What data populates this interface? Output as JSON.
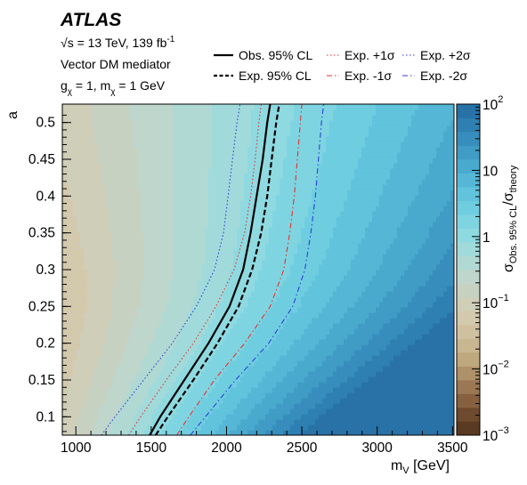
{
  "chart_data": {
    "type": "heatmap",
    "experiment": "ATLAS",
    "info_lines": [
      "13 TeV, 139 fb",
      "Vector DM mediator",
      "g",
      "= 1, m",
      "= 1 GeV"
    ],
    "energy_text": "s = 13 TeV, 139 fb",
    "lumi_sup": "-1",
    "model_text": "Vector DM mediator",
    "coupling": {
      "g": "g",
      "g_sub": "χ",
      "eq1": " = 1, m",
      "m_sub": "χ",
      "eq2": " = 1 GeV"
    },
    "xlabel": "m",
    "xlabel_sub": "V",
    "xlabel_unit": " [GeV]",
    "ylabel": "a",
    "zlabel": "σ",
    "zlabel_sub1": "Obs. 95% CL",
    "zlabel_mid": "/σ",
    "zlabel_sub2": "theory",
    "xlim": [
      910,
      3510
    ],
    "ylim": [
      0.075,
      0.525
    ],
    "zlim_log10": [
      -3,
      2
    ],
    "x_ticks": [
      "1000",
      "1500",
      "2000",
      "2500",
      "3000",
      "3500"
    ],
    "x_tick_values": [
      1000,
      1500,
      2000,
      2500,
      3000,
      3500
    ],
    "y_ticks": [
      "0.1",
      "0.15",
      "0.2",
      "0.25",
      "0.3",
      "0.35",
      "0.4",
      "0.45",
      "0.5"
    ],
    "y_tick_values": [
      0.1,
      0.15,
      0.2,
      0.25,
      0.3,
      0.35,
      0.4,
      0.45,
      0.5
    ],
    "z_ticks": [
      {
        "base": "10",
        "exp": "2",
        "log": 2
      },
      {
        "base": "10",
        "exp": "",
        "log": 1
      },
      {
        "base": "1",
        "exp": "",
        "log": 0
      },
      {
        "base": "10",
        "exp": "−1",
        "log": -1
      },
      {
        "base": "10",
        "exp": "−2",
        "log": -2
      },
      {
        "base": "10",
        "exp": "−3",
        "log": -3
      }
    ],
    "palette": [
      "#5a3a22",
      "#6e4a2e",
      "#86603f",
      "#9b7753",
      "#ae9168",
      "#bfa87e",
      "#c8b690",
      "#cfc1a0",
      "#d3c9ad",
      "#cfceb8",
      "#c7d1c2",
      "#bed6cb",
      "#b1d9d3",
      "#a1dadb",
      "#8fd9e0",
      "#7fd4e1",
      "#6fcde0",
      "#61c3dc",
      "#55b7d5",
      "#4aaace",
      "#409cc5",
      "#378ebc",
      "#2f80b2",
      "#2872a7"
    ],
    "heatmap_model": {
      "a_ref": 0.1,
      "a_scale": 0.35,
      "x0": 1200,
      "x_scale": 1300
    },
    "series": [
      {
        "name": "Obs. 95% CL",
        "style": "solid",
        "color": "#000000",
        "points": [
          [
            1490,
            0.075
          ],
          [
            1560,
            0.1
          ],
          [
            1720,
            0.15
          ],
          [
            1880,
            0.2
          ],
          [
            2020,
            0.25
          ],
          [
            2110,
            0.3
          ],
          [
            2160,
            0.35
          ],
          [
            2200,
            0.4
          ],
          [
            2240,
            0.45
          ],
          [
            2270,
            0.5
          ],
          [
            2290,
            0.525
          ]
        ]
      },
      {
        "name": "Exp. 95% CL",
        "style": "dash",
        "color": "#000000",
        "points": [
          [
            1530,
            0.075
          ],
          [
            1610,
            0.1
          ],
          [
            1780,
            0.15
          ],
          [
            1940,
            0.2
          ],
          [
            2080,
            0.25
          ],
          [
            2170,
            0.3
          ],
          [
            2230,
            0.35
          ],
          [
            2270,
            0.4
          ],
          [
            2300,
            0.45
          ],
          [
            2330,
            0.5
          ],
          [
            2350,
            0.525
          ]
        ]
      },
      {
        "name": "Exp. +1σ",
        "style": "dot",
        "color": "#e8302b",
        "points": [
          [
            1350,
            0.075
          ],
          [
            1430,
            0.1
          ],
          [
            1600,
            0.15
          ],
          [
            1780,
            0.2
          ],
          [
            1930,
            0.25
          ],
          [
            2050,
            0.3
          ],
          [
            2120,
            0.35
          ],
          [
            2160,
            0.4
          ],
          [
            2190,
            0.45
          ],
          [
            2215,
            0.5
          ],
          [
            2230,
            0.525
          ]
        ]
      },
      {
        "name": "Exp. -1σ",
        "style": "dashdot",
        "color": "#e8302b",
        "points": [
          [
            1670,
            0.075
          ],
          [
            1750,
            0.1
          ],
          [
            1920,
            0.15
          ],
          [
            2120,
            0.2
          ],
          [
            2290,
            0.25
          ],
          [
            2380,
            0.3
          ],
          [
            2420,
            0.35
          ],
          [
            2450,
            0.4
          ],
          [
            2470,
            0.45
          ],
          [
            2490,
            0.5
          ],
          [
            2500,
            0.525
          ]
        ]
      },
      {
        "name": "Exp. +2σ",
        "style": "dot",
        "color": "#2d3fd6",
        "points": [
          [
            1170,
            0.075
          ],
          [
            1260,
            0.1
          ],
          [
            1450,
            0.15
          ],
          [
            1640,
            0.2
          ],
          [
            1800,
            0.25
          ],
          [
            1920,
            0.3
          ],
          [
            1980,
            0.35
          ],
          [
            2010,
            0.4
          ],
          [
            2040,
            0.45
          ],
          [
            2070,
            0.5
          ],
          [
            2090,
            0.525
          ]
        ]
      },
      {
        "name": "Exp. -2σ",
        "style": "dashdot",
        "color": "#2d3fd6",
        "points": [
          [
            1760,
            0.075
          ],
          [
            1860,
            0.1
          ],
          [
            2060,
            0.15
          ],
          [
            2280,
            0.2
          ],
          [
            2440,
            0.25
          ],
          [
            2520,
            0.3
          ],
          [
            2560,
            0.35
          ],
          [
            2590,
            0.4
          ],
          [
            2610,
            0.45
          ],
          [
            2630,
            0.5
          ],
          [
            2645,
            0.525
          ]
        ]
      }
    ],
    "legend": {
      "placement": "top",
      "entries": [
        {
          "label": "Obs. 95% CL",
          "series": 0
        },
        {
          "label": "Exp. 95% CL",
          "series": 1
        },
        {
          "label": "Exp. +1",
          "suffix": "σ",
          "series": 2
        },
        {
          "label": "Exp. -1",
          "suffix": "σ",
          "series": 3
        },
        {
          "label": "Exp. +2",
          "suffix": "σ",
          "series": 4
        },
        {
          "label": "Exp. -2",
          "suffix": "σ",
          "series": 5
        }
      ]
    }
  }
}
